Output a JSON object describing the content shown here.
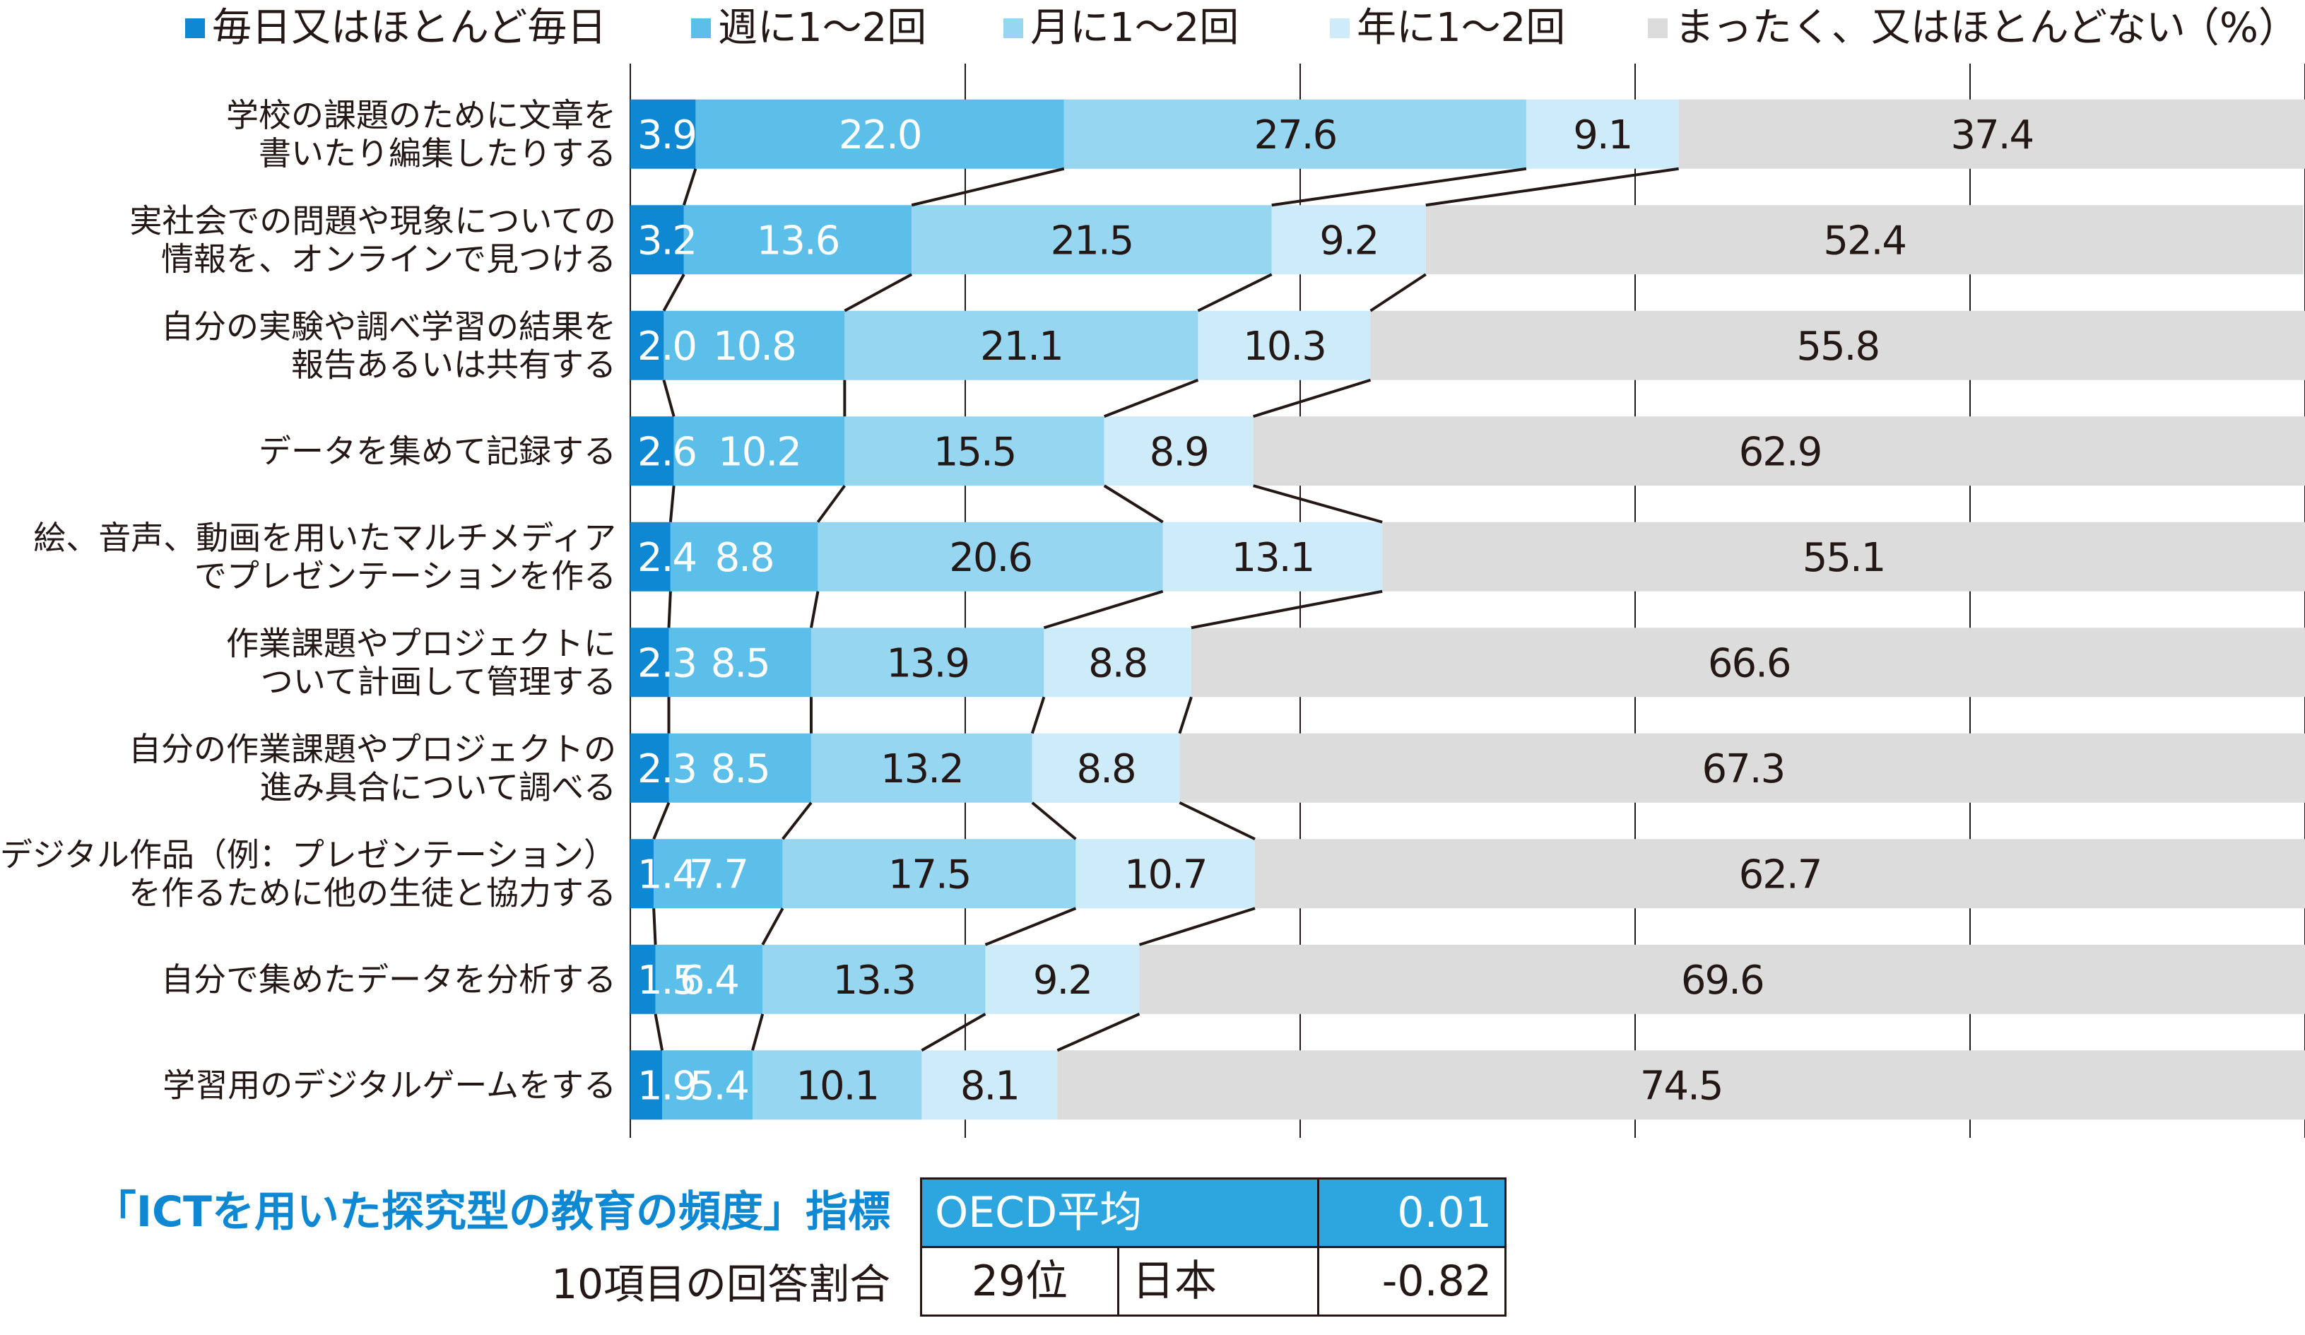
{
  "unit": "（%）",
  "legend": [
    {
      "label": "毎日又はほとんど毎日",
      "color": "#0e88d2"
    },
    {
      "label": "週に1～2回",
      "color": "#5bbfe9"
    },
    {
      "label": "月に1～2回",
      "color": "#97d6f1"
    },
    {
      "label": "年に1～2回",
      "color": "#cdebf8"
    },
    {
      "label": "まったく、又はほとんどない",
      "color": "#dcdcdc"
    }
  ],
  "chart_data": {
    "type": "bar",
    "orientation": "horizontal",
    "stacked": true,
    "ylim": [
      0,
      100
    ],
    "categories": [
      [
        "学校の課題のために文章を",
        "書いたり編集したりする"
      ],
      [
        "実社会での問題や現象についての",
        "情報を、オンラインで見つける"
      ],
      [
        "自分の実験や調べ学習の結果を",
        "報告あるいは共有する"
      ],
      [
        "データを集めて記録する"
      ],
      [
        "絵、音声、動画を用いたマルチメディア",
        "でプレゼンテーションを作る"
      ],
      [
        "作業課題やプロジェクトに",
        "ついて計画して管理する"
      ],
      [
        "自分の作業課題やプロジェクトの",
        "進み具合について調べる"
      ],
      [
        "デジタル作品（例：プレゼンテーション）",
        "を作るために他の生徒と協力する"
      ],
      [
        "自分で集めたデータを分析する"
      ],
      [
        "学習用のデジタルゲームをする"
      ]
    ],
    "series": [
      {
        "name": "毎日又はほとんど毎日",
        "color": "#0e88d2",
        "values": [
          3.9,
          3.2,
          2.0,
          2.6,
          2.4,
          2.3,
          2.3,
          1.4,
          1.5,
          1.9
        ],
        "labels": [
          "3.9",
          "3.2",
          "2.0",
          "2.6",
          "2.4",
          "2.3",
          "2.3",
          "1.4",
          "1.5",
          "1.9"
        ]
      },
      {
        "name": "週に1～2回",
        "color": "#5bbfe9",
        "values": [
          22.0,
          13.6,
          10.8,
          10.2,
          8.8,
          8.5,
          8.5,
          7.7,
          6.4,
          5.4
        ],
        "labels": [
          "22.0",
          "13.6",
          "10.8",
          "10.2",
          "8.8",
          "8.5",
          "8.5",
          "7.7",
          "6.4",
          "5.4"
        ]
      },
      {
        "name": "月に1～2回",
        "color": "#97d6f1",
        "values": [
          27.6,
          21.5,
          21.1,
          15.5,
          20.6,
          13.9,
          13.2,
          17.5,
          13.3,
          10.1
        ],
        "labels": [
          "27.6",
          "21.5",
          "21.1",
          "15.5",
          "20.6",
          "13.9",
          "13.2",
          "17.5",
          "13.3",
          "10.1"
        ]
      },
      {
        "name": "年に1～2回",
        "color": "#cdebf8",
        "values": [
          9.1,
          9.2,
          10.3,
          8.9,
          13.1,
          8.8,
          8.8,
          10.7,
          9.2,
          8.1
        ],
        "labels": [
          "9.1",
          "9.2",
          "10.3",
          "8.9",
          "13.1",
          "8.8",
          "8.8",
          "10.7",
          "9.2",
          "8.1"
        ]
      },
      {
        "name": "まったく、又はほとんどない",
        "color": "#dcdcdc",
        "values": [
          37.4,
          52.4,
          55.8,
          62.9,
          55.1,
          66.6,
          67.3,
          62.7,
          69.6,
          74.5
        ],
        "labels": [
          "37.4",
          "52.4",
          "55.8",
          "62.9",
          "55.1",
          "66.6",
          "67.3",
          "62.7",
          "69.6",
          "74.5"
        ]
      }
    ]
  },
  "index_panel": {
    "title": "「ICTを用いた探究型の教育の頻度」指標",
    "subtitle": "10項目の回答割合",
    "oecd_label": "OECD平均",
    "oecd_value": "0.01",
    "rank": "29位",
    "country": "日本",
    "japan_value": "-0.82"
  }
}
